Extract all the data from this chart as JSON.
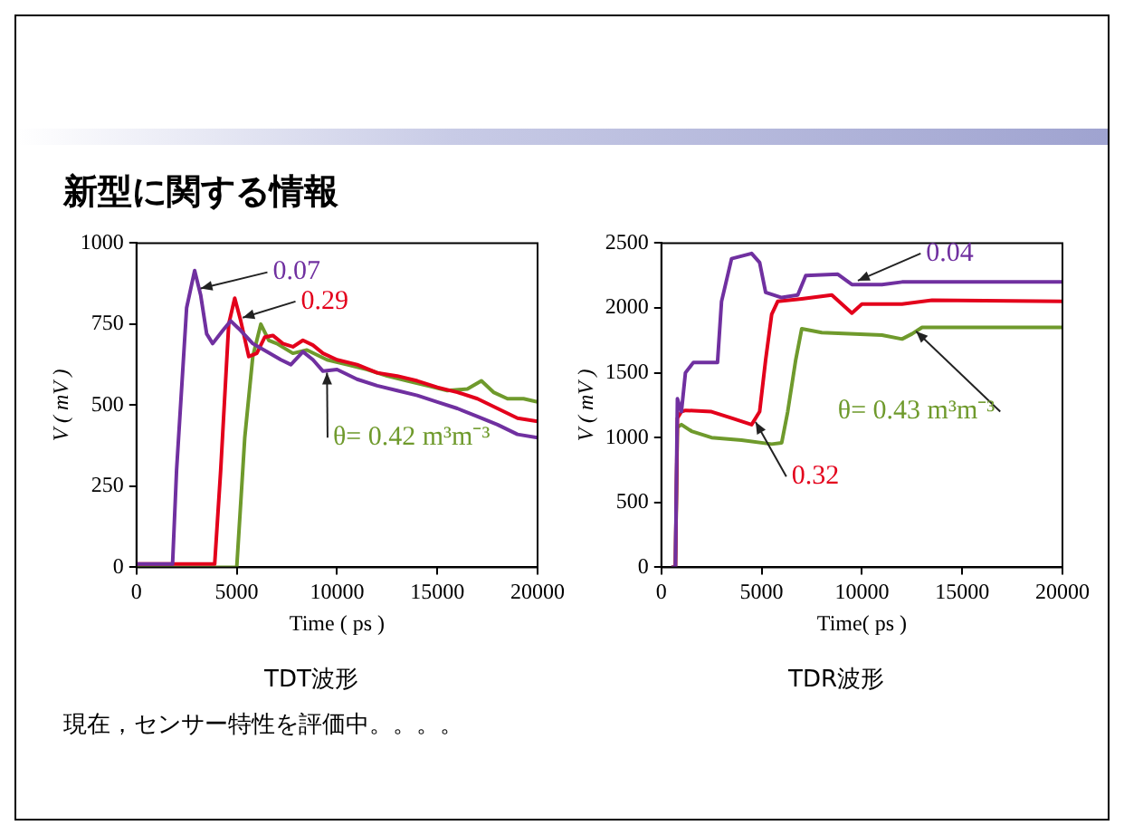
{
  "chart_data": [
    {
      "type": "line",
      "title": "新型に関する情報",
      "xlabel": "Time ( ps )",
      "ylabel": "V ( mV )",
      "xlim": [
        0,
        20000
      ],
      "xticks": [
        0,
        5000,
        10000,
        15000,
        20000
      ],
      "ylim": [
        0,
        1000
      ],
      "yticks": [
        0,
        250,
        500,
        750,
        1000
      ],
      "grid": false,
      "legend": false,
      "marker": "none",
      "line_style": "solid",
      "annotations": [
        "TDT波形",
        "現在，センサー特性を評価中。。。。"
      ],
      "series": [
        {
          "name": "0.07",
          "color": "#7030a0",
          "x": [
            0,
            1800,
            2000,
            2500,
            2900,
            3200,
            3500,
            3800,
            4300,
            4700,
            5200,
            5800,
            6500,
            7200,
            7700,
            8300,
            8800,
            9300,
            10000,
            11000,
            12000,
            13000,
            14000,
            15000,
            16000,
            17000,
            18000,
            19000,
            20000
          ],
          "values": [
            10,
            10,
            300,
            800,
            915,
            840,
            720,
            690,
            730,
            760,
            730,
            690,
            665,
            640,
            625,
            665,
            640,
            605,
            610,
            580,
            560,
            545,
            530,
            510,
            490,
            465,
            440,
            410,
            400
          ]
        },
        {
          "name": "0.29",
          "color": "#e3001b",
          "x": [
            0,
            3900,
            4200,
            4600,
            4900,
            5200,
            5600,
            6000,
            6400,
            6800,
            7300,
            7800,
            8300,
            8800,
            9300,
            10000,
            11000,
            12000,
            13000,
            14000,
            15000,
            16000,
            17000,
            18000,
            19000,
            20000
          ],
          "values": [
            10,
            10,
            300,
            750,
            830,
            760,
            650,
            660,
            710,
            715,
            690,
            680,
            700,
            685,
            660,
            640,
            625,
            600,
            590,
            575,
            555,
            540,
            520,
            490,
            460,
            450
          ]
        },
        {
          "name": "θ= 0.42 m³m⁻³",
          "color": "#6f9a2c",
          "x": [
            0,
            5000,
            5400,
            5800,
            6200,
            6600,
            7000,
            7800,
            8500,
            9500,
            10500,
            11500,
            12500,
            13500,
            14500,
            15500,
            16500,
            17200,
            17800,
            18500,
            19300,
            20000
          ],
          "values": [
            0,
            0,
            400,
            650,
            750,
            700,
            690,
            660,
            670,
            640,
            625,
            610,
            590,
            575,
            560,
            545,
            550,
            575,
            540,
            520,
            520,
            510
          ]
        }
      ]
    },
    {
      "type": "line",
      "xlabel": "Time( ps )",
      "ylabel": "V ( mV )",
      "xlim": [
        0,
        20000
      ],
      "xticks": [
        0,
        5000,
        10000,
        15000,
        20000
      ],
      "ylim": [
        0,
        2500
      ],
      "yticks": [
        0,
        500,
        1000,
        1500,
        2000,
        2500
      ],
      "grid": false,
      "legend": false,
      "marker": "none",
      "line_style": "solid",
      "annotations": [
        "TDR波形"
      ],
      "series": [
        {
          "name": "0.04",
          "color": "#7030a0",
          "x": [
            500,
            700,
            800,
            1000,
            1200,
            1600,
            2800,
            3000,
            3500,
            4500,
            4900,
            5200,
            6000,
            6800,
            7200,
            8800,
            9500,
            11000,
            12000,
            20000
          ],
          "values": [
            0,
            0,
            1300,
            1200,
            1500,
            1580,
            1580,
            2050,
            2380,
            2420,
            2350,
            2120,
            2080,
            2100,
            2250,
            2260,
            2180,
            2180,
            2200,
            2200
          ]
        },
        {
          "name": "0.32",
          "color": "#e3001b",
          "x": [
            500,
            700,
            800,
            1000,
            1200,
            2500,
            3500,
            4500,
            4900,
            5200,
            5500,
            5800,
            7000,
            8500,
            9500,
            10000,
            12000,
            13500,
            20000
          ],
          "values": [
            0,
            0,
            1150,
            1200,
            1210,
            1200,
            1150,
            1100,
            1200,
            1600,
            1950,
            2050,
            2070,
            2100,
            1960,
            2030,
            2030,
            2060,
            2050
          ]
        },
        {
          "name": "θ= 0.43 m³m⁻³",
          "color": "#6f9a2c",
          "x": [
            500,
            700,
            800,
            1000,
            1500,
            2500,
            4000,
            5500,
            6000,
            6300,
            6700,
            7000,
            8000,
            11000,
            12000,
            12500,
            13000,
            20000
          ],
          "values": [
            0,
            0,
            1080,
            1100,
            1050,
            1000,
            980,
            950,
            960,
            1200,
            1600,
            1840,
            1810,
            1790,
            1760,
            1800,
            1850,
            1850
          ]
        }
      ]
    }
  ]
}
